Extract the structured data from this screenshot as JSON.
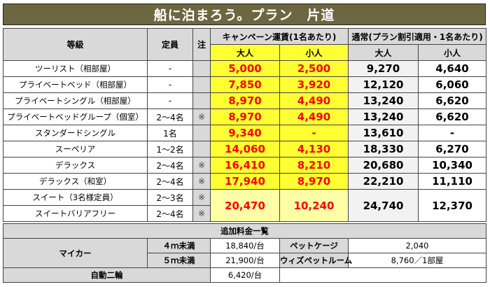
{
  "title": "船に泊まろう。プラン　片道",
  "headers": {
    "class": "等級",
    "capacity": "定員",
    "note": "注",
    "campaign": "キャンペーン運賃(1名あたり)",
    "regular": "通常(プラン割引適用・1名あたり)",
    "adult": "大人",
    "child": "小人"
  },
  "rows": [
    {
      "name": "ツーリスト（相部屋）",
      "cap": "-",
      "note": "",
      "c_adult": "5,000",
      "c_child": "2,500",
      "r_adult": "9,270",
      "r_child": "4,640"
    },
    {
      "name": "プライベートベッド（相部屋）",
      "cap": "-",
      "note": "",
      "c_adult": "7,850",
      "c_child": "3,920",
      "r_adult": "12,120",
      "r_child": "6,060"
    },
    {
      "name": "プライベートシングル（相部屋）",
      "cap": "-",
      "note": "",
      "c_adult": "8,970",
      "c_child": "4,490",
      "r_adult": "13,240",
      "r_child": "6,620"
    },
    {
      "name": "プライベートベッドグループ（個室）",
      "cap": "2～4名",
      "note": "※",
      "c_adult": "8,970",
      "c_child": "4,490",
      "r_adult": "13,240",
      "r_child": "6,620"
    },
    {
      "name": "スタンダードシングル",
      "cap": "1名",
      "note": "",
      "c_adult": "9,340",
      "c_child": "-",
      "r_adult": "13,610",
      "r_child": "-"
    },
    {
      "name": "スーペリア",
      "cap": "1～2名",
      "note": "",
      "c_adult": "14,060",
      "c_child": "4,130",
      "r_adult": "18,330",
      "r_child": "6,270"
    },
    {
      "name": "デラックス",
      "cap": "2～4名",
      "note": "※",
      "c_adult": "16,410",
      "c_child": "8,210",
      "r_adult": "20,680",
      "r_child": "10,340"
    },
    {
      "name": "デラックス（和室）",
      "cap": "2～4名",
      "note": "※",
      "c_adult": "17,940",
      "c_child": "8,970",
      "r_adult": "22,210",
      "r_child": "11,110"
    }
  ],
  "suite": {
    "name1": "スイート（3名様定員）",
    "cap1": "2～3名",
    "note1": "※",
    "name2": "スイートバリアフリー",
    "cap2": "2～4名",
    "note2": "※",
    "c_adult": "20,470",
    "c_child": "10,240",
    "r_adult": "24,740",
    "r_child": "12,370"
  },
  "extra": {
    "title": "追加料金一覧",
    "car_label": "マイカー",
    "car_under4": "４ｍ未満",
    "car_under4_price": "18,840/台",
    "car_under5": "５ｍ未満",
    "car_under5_price": "21,900/台",
    "bike_label": "自動二輪",
    "bike_price": "6,420/台",
    "pet_cage": "ペットケージ",
    "pet_cage_price": "2,040",
    "with_pet_room": "ウィズペットルーム",
    "with_pet_room_price": "8,760／1部屋"
  }
}
